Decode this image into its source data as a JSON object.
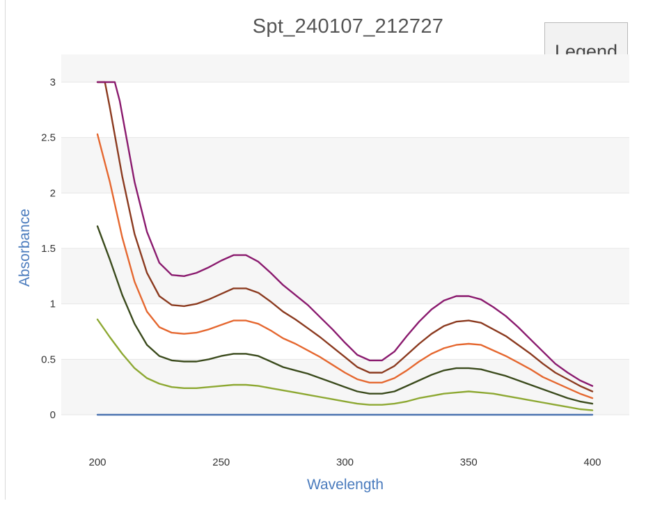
{
  "chart": {
    "title": "Spt_240107_212727",
    "legend_button_label": "Legend"
  },
  "chart_data": {
    "type": "line",
    "title": "Spt_240107_212727",
    "xlabel": "Wavelength",
    "ylabel": "Absorbance",
    "xlim": [
      200,
      400
    ],
    "ylim": [
      -0.25,
      3.25
    ],
    "xticks": [
      200,
      250,
      300,
      350,
      400
    ],
    "yticks": [
      0,
      0.5,
      1,
      1.5,
      2,
      2.5,
      3
    ],
    "ytick_labels": [
      "0",
      "0.5",
      "1",
      "1.5",
      "2",
      "2.5",
      "3"
    ],
    "grid": "horizontal",
    "series": [
      {
        "color": "#4a72b0",
        "points": [
          [
            200,
            0
          ],
          [
            400,
            0
          ]
        ]
      },
      {
        "color": "#8da832",
        "points": [
          [
            200,
            0.86
          ],
          [
            205,
            0.7
          ],
          [
            210,
            0.55
          ],
          [
            215,
            0.42
          ],
          [
            220,
            0.33
          ],
          [
            225,
            0.28
          ],
          [
            230,
            0.25
          ],
          [
            235,
            0.24
          ],
          [
            240,
            0.24
          ],
          [
            245,
            0.25
          ],
          [
            250,
            0.26
          ],
          [
            255,
            0.27
          ],
          [
            260,
            0.27
          ],
          [
            265,
            0.26
          ],
          [
            270,
            0.24
          ],
          [
            275,
            0.22
          ],
          [
            280,
            0.2
          ],
          [
            285,
            0.18
          ],
          [
            290,
            0.16
          ],
          [
            295,
            0.14
          ],
          [
            300,
            0.12
          ],
          [
            305,
            0.1
          ],
          [
            310,
            0.09
          ],
          [
            315,
            0.09
          ],
          [
            320,
            0.1
          ],
          [
            325,
            0.12
          ],
          [
            330,
            0.15
          ],
          [
            335,
            0.17
          ],
          [
            340,
            0.19
          ],
          [
            345,
            0.2
          ],
          [
            350,
            0.21
          ],
          [
            355,
            0.2
          ],
          [
            360,
            0.19
          ],
          [
            365,
            0.17
          ],
          [
            370,
            0.15
          ],
          [
            375,
            0.13
          ],
          [
            380,
            0.11
          ],
          [
            385,
            0.09
          ],
          [
            390,
            0.07
          ],
          [
            395,
            0.05
          ],
          [
            400,
            0.04
          ]
        ]
      },
      {
        "color": "#3a4a1c",
        "points": [
          [
            200,
            1.7
          ],
          [
            205,
            1.4
          ],
          [
            210,
            1.08
          ],
          [
            215,
            0.82
          ],
          [
            220,
            0.63
          ],
          [
            225,
            0.53
          ],
          [
            230,
            0.49
          ],
          [
            235,
            0.48
          ],
          [
            240,
            0.48
          ],
          [
            245,
            0.5
          ],
          [
            250,
            0.53
          ],
          [
            255,
            0.55
          ],
          [
            260,
            0.55
          ],
          [
            265,
            0.53
          ],
          [
            270,
            0.48
          ],
          [
            275,
            0.43
          ],
          [
            280,
            0.4
          ],
          [
            285,
            0.37
          ],
          [
            290,
            0.33
          ],
          [
            295,
            0.29
          ],
          [
            300,
            0.25
          ],
          [
            305,
            0.21
          ],
          [
            310,
            0.19
          ],
          [
            315,
            0.19
          ],
          [
            320,
            0.21
          ],
          [
            325,
            0.26
          ],
          [
            330,
            0.31
          ],
          [
            335,
            0.36
          ],
          [
            340,
            0.4
          ],
          [
            345,
            0.42
          ],
          [
            350,
            0.42
          ],
          [
            355,
            0.41
          ],
          [
            360,
            0.38
          ],
          [
            365,
            0.35
          ],
          [
            370,
            0.31
          ],
          [
            375,
            0.27
          ],
          [
            380,
            0.23
          ],
          [
            385,
            0.19
          ],
          [
            390,
            0.15
          ],
          [
            395,
            0.12
          ],
          [
            400,
            0.1
          ]
        ]
      },
      {
        "color": "#e5672f",
        "points": [
          [
            200,
            2.53
          ],
          [
            205,
            2.1
          ],
          [
            210,
            1.6
          ],
          [
            215,
            1.2
          ],
          [
            220,
            0.93
          ],
          [
            225,
            0.79
          ],
          [
            230,
            0.74
          ],
          [
            235,
            0.73
          ],
          [
            240,
            0.74
          ],
          [
            245,
            0.77
          ],
          [
            250,
            0.81
          ],
          [
            255,
            0.85
          ],
          [
            260,
            0.85
          ],
          [
            265,
            0.82
          ],
          [
            270,
            0.76
          ],
          [
            275,
            0.69
          ],
          [
            280,
            0.64
          ],
          [
            285,
            0.58
          ],
          [
            290,
            0.52
          ],
          [
            295,
            0.45
          ],
          [
            300,
            0.38
          ],
          [
            305,
            0.32
          ],
          [
            310,
            0.29
          ],
          [
            315,
            0.29
          ],
          [
            320,
            0.33
          ],
          [
            325,
            0.4
          ],
          [
            330,
            0.48
          ],
          [
            335,
            0.55
          ],
          [
            340,
            0.6
          ],
          [
            345,
            0.63
          ],
          [
            350,
            0.64
          ],
          [
            355,
            0.63
          ],
          [
            360,
            0.58
          ],
          [
            365,
            0.53
          ],
          [
            370,
            0.47
          ],
          [
            375,
            0.41
          ],
          [
            380,
            0.34
          ],
          [
            385,
            0.29
          ],
          [
            390,
            0.24
          ],
          [
            395,
            0.19
          ],
          [
            400,
            0.15
          ]
        ]
      },
      {
        "color": "#8b3a1f",
        "points": [
          [
            200,
            3.0
          ],
          [
            203,
            3.0
          ],
          [
            205,
            2.77
          ],
          [
            210,
            2.15
          ],
          [
            215,
            1.63
          ],
          [
            220,
            1.28
          ],
          [
            225,
            1.07
          ],
          [
            230,
            0.99
          ],
          [
            235,
            0.98
          ],
          [
            240,
            1.0
          ],
          [
            245,
            1.04
          ],
          [
            250,
            1.09
          ],
          [
            255,
            1.14
          ],
          [
            260,
            1.14
          ],
          [
            265,
            1.1
          ],
          [
            270,
            1.02
          ],
          [
            275,
            0.93
          ],
          [
            280,
            0.86
          ],
          [
            285,
            0.78
          ],
          [
            290,
            0.7
          ],
          [
            295,
            0.61
          ],
          [
            300,
            0.52
          ],
          [
            305,
            0.43
          ],
          [
            310,
            0.38
          ],
          [
            315,
            0.38
          ],
          [
            320,
            0.44
          ],
          [
            325,
            0.54
          ],
          [
            330,
            0.64
          ],
          [
            335,
            0.73
          ],
          [
            340,
            0.8
          ],
          [
            345,
            0.84
          ],
          [
            350,
            0.85
          ],
          [
            355,
            0.83
          ],
          [
            360,
            0.77
          ],
          [
            365,
            0.71
          ],
          [
            370,
            0.63
          ],
          [
            375,
            0.55
          ],
          [
            380,
            0.46
          ],
          [
            385,
            0.38
          ],
          [
            390,
            0.32
          ],
          [
            395,
            0.26
          ],
          [
            400,
            0.21
          ]
        ]
      },
      {
        "color": "#8a1a6e",
        "points": [
          [
            200,
            3.0
          ],
          [
            207,
            3.0
          ],
          [
            209,
            2.83
          ],
          [
            215,
            2.1
          ],
          [
            220,
            1.65
          ],
          [
            225,
            1.37
          ],
          [
            230,
            1.26
          ],
          [
            235,
            1.25
          ],
          [
            240,
            1.28
          ],
          [
            245,
            1.33
          ],
          [
            250,
            1.39
          ],
          [
            255,
            1.44
          ],
          [
            260,
            1.44
          ],
          [
            265,
            1.38
          ],
          [
            270,
            1.28
          ],
          [
            275,
            1.17
          ],
          [
            280,
            1.08
          ],
          [
            285,
            0.99
          ],
          [
            290,
            0.88
          ],
          [
            295,
            0.77
          ],
          [
            300,
            0.65
          ],
          [
            305,
            0.54
          ],
          [
            310,
            0.49
          ],
          [
            315,
            0.49
          ],
          [
            320,
            0.57
          ],
          [
            325,
            0.71
          ],
          [
            330,
            0.84
          ],
          [
            335,
            0.95
          ],
          [
            340,
            1.03
          ],
          [
            345,
            1.07
          ],
          [
            350,
            1.07
          ],
          [
            355,
            1.04
          ],
          [
            360,
            0.97
          ],
          [
            365,
            0.89
          ],
          [
            370,
            0.79
          ],
          [
            375,
            0.68
          ],
          [
            380,
            0.57
          ],
          [
            385,
            0.46
          ],
          [
            390,
            0.38
          ],
          [
            395,
            0.31
          ],
          [
            400,
            0.26
          ]
        ]
      }
    ]
  }
}
